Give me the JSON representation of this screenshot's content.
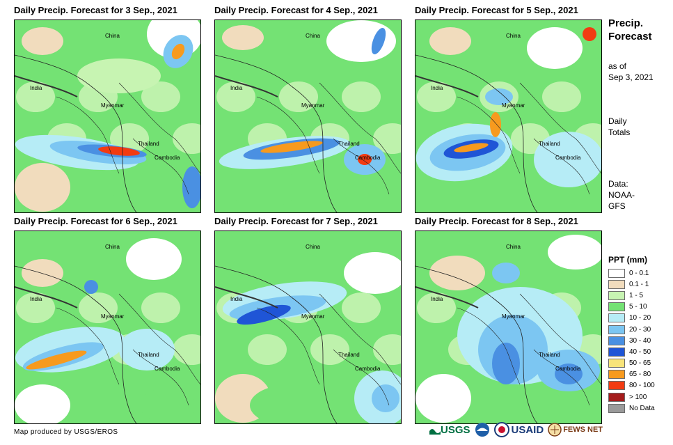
{
  "panels": [
    {
      "title": "Daily Precip. Forecast for 3 Sep., 2021",
      "variant": 0
    },
    {
      "title": "Daily Precip. Forecast for 4 Sep., 2021",
      "variant": 1
    },
    {
      "title": "Daily Precip. Forecast for 5 Sep., 2021",
      "variant": 2
    },
    {
      "title": "Daily Precip. Forecast for 6 Sep., 2021",
      "variant": 3
    },
    {
      "title": "Daily Precip. Forecast for 7 Sep., 2021",
      "variant": 4
    },
    {
      "title": "Daily Precip. Forecast for 8 Sep., 2021",
      "variant": 5
    }
  ],
  "map_labels": {
    "china": "China",
    "india": "India",
    "myanmar": "Myanmar",
    "thailand": "Thailand",
    "cambodia": "Cambodia"
  },
  "side": {
    "title_line1": "Precip.",
    "title_line2": "Forecast",
    "asof_line1": "as of",
    "asof_line2": "Sep 3, 2021",
    "daily_line1": "Daily",
    "daily_line2": "Totals",
    "data_line1": "Data:",
    "data_line2": "NOAA-",
    "data_line3": "GFS"
  },
  "legend": {
    "title": "PPT (mm)",
    "items": [
      {
        "label": "0 - 0.1",
        "color": "#ffffff"
      },
      {
        "label": "0.1 - 1",
        "color": "#f1dcbd"
      },
      {
        "label": "1 - 5",
        "color": "#c7f4b2"
      },
      {
        "label": "5 - 10",
        "color": "#74e274"
      },
      {
        "label": "10 - 20",
        "color": "#b6ecf6"
      },
      {
        "label": "20 - 30",
        "color": "#7cc6f2"
      },
      {
        "label": "30 - 40",
        "color": "#4a90e2"
      },
      {
        "label": "40 - 50",
        "color": "#1f55d6"
      },
      {
        "label": "50 - 65",
        "color": "#f8e47a"
      },
      {
        "label": "65 - 80",
        "color": "#f79a1e"
      },
      {
        "label": "80 - 100",
        "color": "#f23b12"
      },
      {
        "label": "> 100",
        "color": "#a51c1c"
      },
      {
        "label": "No Data",
        "color": "#9a9a9a"
      }
    ]
  },
  "footer": {
    "credit": "Map produced by USGS/EROS"
  },
  "logos": {
    "usgs": "USGS",
    "usaid": "USAID",
    "fews": "FEWS NET"
  }
}
